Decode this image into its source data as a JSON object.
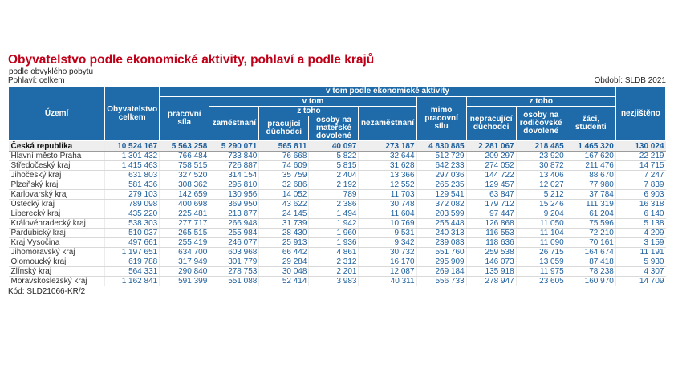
{
  "title": "Obyvatelstvo podle ekonomické aktivity, pohlaví a podle krajů",
  "subtitle": "podle obvyklého pobytu",
  "meta": {
    "gender": "Pohlaví: celkem",
    "period": "Období: SLDB 2021"
  },
  "headers": {
    "territory": "Území",
    "population": "Obyvatelstvo celkem",
    "activity_group": "v tom podle ekonomické aktivity",
    "labor_force": "pracovní síla",
    "v_tom": "v tom",
    "employed": "zaměstnaní",
    "z_toho_employed": "z toho",
    "working_pensioners": "pracující důchodci",
    "maternity": "osoby na mateřské dovolené",
    "unemployed": "nezaměstnaní",
    "outside": "mimo pracovní sílu",
    "z_toho_outside": "z toho",
    "nonworking_pensioners": "nepracující důchodci",
    "parental": "osoby na rodičovské dovolené",
    "students": "žáci, studenti",
    "unknown": "nezjištěno"
  },
  "total_row": [
    "Česká republika",
    "10 524 167",
    "5 563 258",
    "5 290 071",
    "565 811",
    "40 097",
    "273 187",
    "4 830 885",
    "2 281 067",
    "218 485",
    "1 465 320",
    "130 024"
  ],
  "rows": [
    [
      "Hlavní město Praha",
      "1 301 432",
      "766 484",
      "733 840",
      "76 668",
      "5 822",
      "32 644",
      "512 729",
      "209 297",
      "23 920",
      "167 620",
      "22 219"
    ],
    [
      "Středočeský kraj",
      "1 415 463",
      "758 515",
      "726 887",
      "74 609",
      "5 815",
      "31 628",
      "642 233",
      "274 052",
      "30 872",
      "211 476",
      "14 715"
    ],
    [
      "Jihočeský kraj",
      "631 803",
      "327 520",
      "314 154",
      "35 759",
      "2 404",
      "13 366",
      "297 036",
      "144 722",
      "13 406",
      "88 670",
      "7 247"
    ],
    [
      "Plzeňský kraj",
      "581 436",
      "308 362",
      "295 810",
      "32 686",
      "2 192",
      "12 552",
      "265 235",
      "129 457",
      "12 027",
      "77 980",
      "7 839"
    ],
    [
      "Karlovarský kraj",
      "279 103",
      "142 659",
      "130 956",
      "14 052",
      "789",
      "11 703",
      "129 541",
      "63 847",
      "5 212",
      "37 784",
      "6 903"
    ],
    [
      "Ústecký kraj",
      "789 098",
      "400 698",
      "369 950",
      "43 622",
      "2 386",
      "30 748",
      "372 082",
      "179 712",
      "15 246",
      "111 319",
      "16 318"
    ],
    [
      "Liberecký kraj",
      "435 220",
      "225 481",
      "213 877",
      "24 145",
      "1 494",
      "11 604",
      "203 599",
      "97 447",
      "9 204",
      "61 204",
      "6 140"
    ],
    [
      "Královéhradecký kraj",
      "538 303",
      "277 717",
      "266 948",
      "31 739",
      "1 942",
      "10 769",
      "255 448",
      "126 868",
      "11 050",
      "75 596",
      "5 138"
    ],
    [
      "Pardubický kraj",
      "510 037",
      "265 515",
      "255 984",
      "28 430",
      "1 960",
      "9 531",
      "240 313",
      "116 553",
      "11 104",
      "72 210",
      "4 209"
    ],
    [
      "Kraj Vysočina",
      "497 661",
      "255 419",
      "246 077",
      "25 913",
      "1 936",
      "9 342",
      "239 083",
      "118 636",
      "11 090",
      "70 161",
      "3 159"
    ],
    [
      "Jihomoravský kraj",
      "1 197 651",
      "634 700",
      "603 968",
      "66 442",
      "4 861",
      "30 732",
      "551 760",
      "259 538",
      "26 715",
      "164 674",
      "11 191"
    ],
    [
      "Olomoucký kraj",
      "619 788",
      "317 949",
      "301 779",
      "29 284",
      "2 312",
      "16 170",
      "295 909",
      "146 073",
      "13 059",
      "87 418",
      "5 930"
    ],
    [
      "Zlínský kraj",
      "564 331",
      "290 840",
      "278 753",
      "30 048",
      "2 201",
      "12 087",
      "269 184",
      "135 918",
      "11 975",
      "78 238",
      "4 307"
    ],
    [
      "Moravskoslezský kraj",
      "1 162 841",
      "591 399",
      "551 088",
      "52 414",
      "3 983",
      "40 311",
      "556 733",
      "278 947",
      "23 605",
      "160 970",
      "14 709"
    ]
  ],
  "code": "Kód: SLD21066-KR/2"
}
